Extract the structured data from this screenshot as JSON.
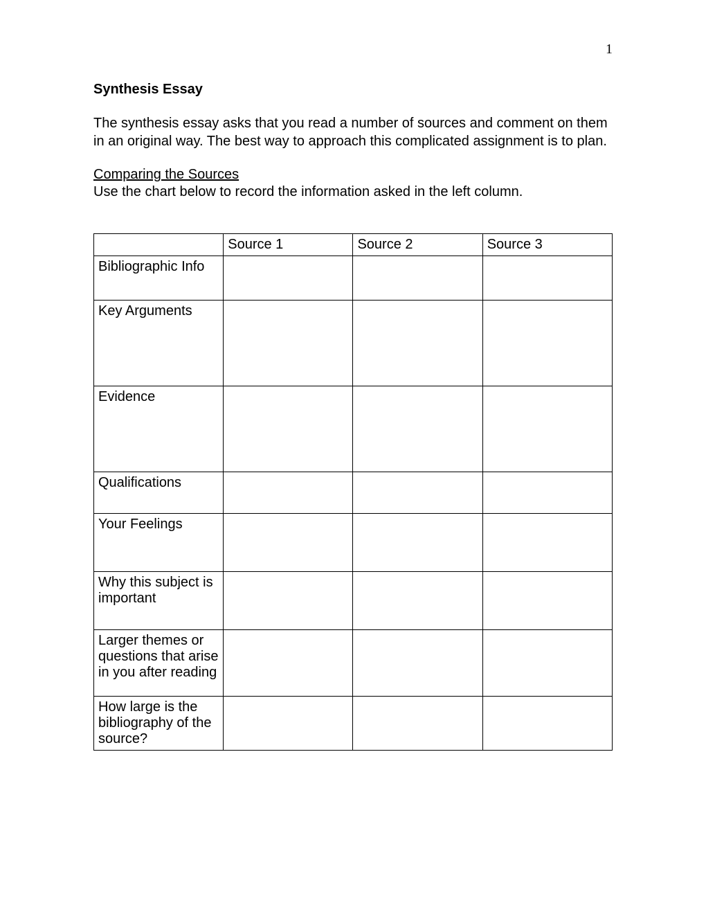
{
  "page_number": "1",
  "title": "Synthesis Essay",
  "intro": "The synthesis essay asks that you read a number of sources and comment on them in an original way.  The best way to approach this complicated assignment is to plan.",
  "subheading": "Comparing the Sources",
  "instruction": "Use the chart below to record the information asked in the left column.",
  "table": {
    "columns": [
      "",
      "Source 1",
      "Source 2",
      "Source 3"
    ],
    "rows": [
      {
        "label": "Bibliographic Info",
        "cells": [
          "",
          "",
          ""
        ],
        "row_class": "row-biblio"
      },
      {
        "label": "Key Arguments",
        "cells": [
          "",
          "",
          ""
        ],
        "row_class": "row-keyargs"
      },
      {
        "label": "Evidence",
        "cells": [
          "",
          "",
          ""
        ],
        "row_class": "row-evidence"
      },
      {
        "label": "Qualifications",
        "cells": [
          "",
          "",
          ""
        ],
        "row_class": "row-qual"
      },
      {
        "label": "Your Feelings",
        "cells": [
          "",
          "",
          ""
        ],
        "row_class": "row-feelings"
      },
      {
        "label": "Why this subject is important",
        "cells": [
          "",
          "",
          ""
        ],
        "row_class": "row-why"
      },
      {
        "label": "Larger themes or questions that arise in you after reading",
        "cells": [
          "",
          "",
          ""
        ],
        "row_class": "row-themes"
      },
      {
        "label": "How large is the bibliography of the source?",
        "cells": [
          "",
          "",
          ""
        ],
        "row_class": "row-bibliosize"
      }
    ]
  },
  "colors": {
    "text": "#000000",
    "background": "#ffffff",
    "border": "#000000"
  },
  "typography": {
    "body_font": "Arial",
    "body_size_pt": 15,
    "page_number_font": "Times New Roman"
  }
}
